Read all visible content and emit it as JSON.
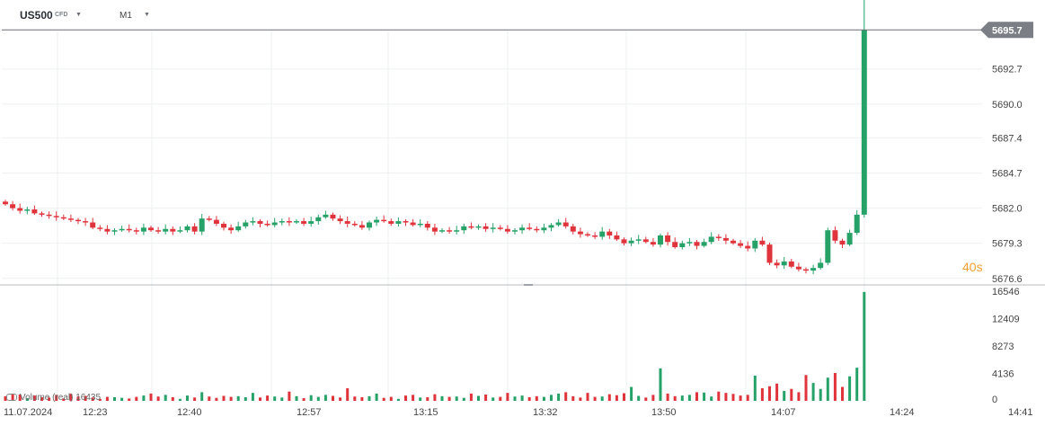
{
  "header": {
    "symbol": "US500",
    "instrument_type": "CFD",
    "timeframe": "M1"
  },
  "countdown": {
    "value": "40",
    "unit": "s"
  },
  "volume_legend": {
    "label": "Volume (real)",
    "value": "16435"
  },
  "colors": {
    "up": "#26a269",
    "down": "#e0343c",
    "price_tag": "#7b7f85",
    "grid": "#eef0f2",
    "countdown": "#f0a030"
  },
  "chart_data": [
    {
      "type": "candlestick",
      "timeframe": "M1",
      "x_tick_labels": [
        "11.07.2024",
        "12:23",
        "12:40",
        "12:57",
        "13:15",
        "13:32",
        "13:50",
        "14:07",
        "14:24",
        "14:41"
      ],
      "y_tick_labels": [
        "5692.7",
        "5690.0",
        "5687.4",
        "5684.7",
        "5682.0",
        "5679.3",
        "5676.6"
      ],
      "ylim": [
        5676.1,
        5698.0
      ],
      "last_price": "5695.7",
      "closes": [
        5682.3,
        5682.0,
        5681.8,
        5681.9,
        5681.6,
        5681.5,
        5681.4,
        5681.3,
        5681.2,
        5681.1,
        5681.0,
        5680.9,
        5680.5,
        5680.4,
        5680.2,
        5680.3,
        5680.4,
        5680.3,
        5680.2,
        5680.5,
        5680.3,
        5680.2,
        5680.4,
        5680.2,
        5680.3,
        5680.6,
        5680.2,
        5681.2,
        5681.1,
        5680.8,
        5680.5,
        5680.3,
        5680.6,
        5680.9,
        5681.0,
        5680.8,
        5680.7,
        5680.9,
        5681.0,
        5680.9,
        5681.0,
        5680.8,
        5681.0,
        5681.3,
        5681.5,
        5681.2,
        5681.0,
        5680.8,
        5680.7,
        5680.5,
        5680.9,
        5681.1,
        5681.0,
        5680.8,
        5681.0,
        5680.9,
        5680.7,
        5680.8,
        5680.5,
        5680.2,
        5680.3,
        5680.2,
        5680.3,
        5680.6,
        5680.5,
        5680.6,
        5680.4,
        5680.5,
        5680.4,
        5680.2,
        5680.3,
        5680.5,
        5680.4,
        5680.3,
        5680.5,
        5680.7,
        5680.9,
        5680.6,
        5680.2,
        5680.0,
        5679.9,
        5679.8,
        5680.2,
        5679.9,
        5679.6,
        5679.3,
        5679.5,
        5679.6,
        5679.4,
        5679.2,
        5679.9,
        5679.4,
        5679.0,
        5679.3,
        5679.4,
        5679.1,
        5679.4,
        5679.8,
        5679.7,
        5679.5,
        5679.3,
        5679.1,
        5678.9,
        5679.5,
        5679.2,
        5677.8,
        5677.6,
        5677.9,
        5677.5,
        5677.3,
        5677.2,
        5677.4,
        5677.8,
        5680.3,
        5679.5,
        5679.2,
        5680.1,
        5681.5,
        5695.7
      ],
      "volume_tick_labels": [
        "16546",
        "12409",
        "8273",
        "4136",
        "0"
      ],
      "vlim": [
        0,
        16546
      ],
      "volumes": [
        700,
        1100,
        950,
        400,
        800,
        550,
        500,
        900,
        350,
        1050,
        650,
        750,
        500,
        300,
        600,
        550,
        450,
        350,
        600,
        800,
        1100,
        650,
        900,
        550,
        300,
        800,
        500,
        1300,
        650,
        450,
        750,
        600,
        700,
        550,
        1200,
        500,
        800,
        650,
        500,
        1400,
        700,
        400,
        850,
        600,
        900,
        750,
        500,
        1900,
        650,
        550,
        700,
        1100,
        450,
        600,
        300,
        800,
        900,
        500,
        550,
        1000,
        700,
        600,
        650,
        450,
        1100,
        750,
        950,
        500,
        600,
        1200,
        650,
        800,
        550,
        700,
        600,
        900,
        1100,
        1300,
        700,
        500,
        1200,
        600,
        650,
        1000,
        850,
        1150,
        2100,
        750,
        500,
        900,
        4900,
        1100,
        700,
        800,
        900,
        1300,
        1250,
        650,
        1400,
        1200,
        1050,
        800,
        900,
        3800,
        1900,
        2200,
        2600,
        1500,
        1800,
        1300,
        3900,
        2700,
        1800,
        3500,
        4200,
        2100,
        3700,
        5000,
        16435
      ]
    }
  ]
}
